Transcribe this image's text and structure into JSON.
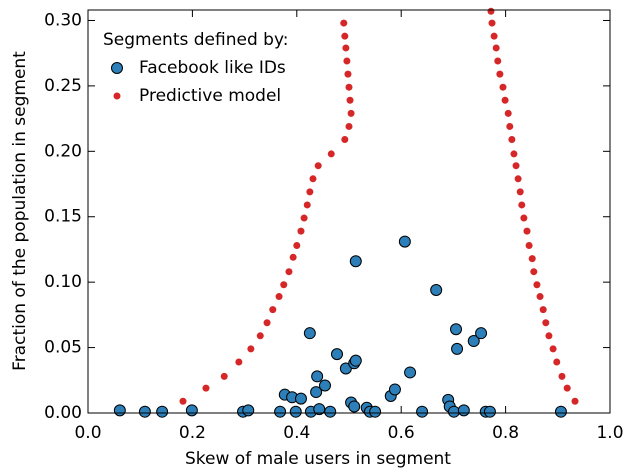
{
  "chart_data": {
    "type": "scatter",
    "xlabel": "Skew of male users in segment",
    "ylabel": "Fraction of the population in segment",
    "legend_title": "Segments defined by:",
    "legend": "upper left",
    "xlim": [
      0,
      1
    ],
    "ylim": [
      0,
      0.308
    ],
    "xticks": [
      {
        "value": 0,
        "label": "0.0"
      },
      {
        "value": 0.2,
        "label": "0.2"
      },
      {
        "value": 0.4,
        "label": "0.4"
      },
      {
        "value": 0.6,
        "label": "0.6"
      },
      {
        "value": 0.8,
        "label": "0.8"
      },
      {
        "value": 1,
        "label": "1.0"
      }
    ],
    "yticks": [
      {
        "value": 0,
        "label": "0.00"
      },
      {
        "value": 0.05,
        "label": "0.05"
      },
      {
        "value": 0.1,
        "label": "0.10"
      },
      {
        "value": 0.15,
        "label": "0.15"
      },
      {
        "value": 0.2,
        "label": "0.20"
      },
      {
        "value": 0.25,
        "label": "0.25"
      },
      {
        "value": 0.3,
        "label": "0.30"
      }
    ],
    "series": [
      {
        "name": "Facebook like IDs",
        "color": "#2c7fb8",
        "x": [
          0.061,
          0.109,
          0.142,
          0.199,
          0.297,
          0.307,
          0.368,
          0.377,
          0.391,
          0.398,
          0.408,
          0.425,
          0.427,
          0.437,
          0.439,
          0.443,
          0.454,
          0.464,
          0.477,
          0.494,
          0.504,
          0.51,
          0.51,
          0.513,
          0.513,
          0.534,
          0.54,
          0.55,
          0.58,
          0.588,
          0.607,
          0.617,
          0.64,
          0.667,
          0.69,
          0.693,
          0.701,
          0.705,
          0.707,
          0.72,
          0.739,
          0.753,
          0.762,
          0.77,
          0.906
        ],
        "values": [
          0.002,
          0.001,
          0.001,
          0.002,
          0.001,
          0.002,
          0.001,
          0.014,
          0.012,
          0.001,
          0.011,
          0.061,
          0.001,
          0.016,
          0.028,
          0.003,
          0.021,
          0.001,
          0.045,
          0.034,
          0.008,
          0.005,
          0.038,
          0.04,
          0.116,
          0.004,
          0.001,
          0.001,
          0.013,
          0.018,
          0.131,
          0.031,
          0.001,
          0.094,
          0.01,
          0.005,
          0.001,
          0.064,
          0.049,
          0.002,
          0.055,
          0.061,
          0.001,
          0.001,
          0.001
        ]
      },
      {
        "name": "Predictive model",
        "color": "#d62728",
        "x": [
          0.182,
          0.226,
          0.261,
          0.289,
          0.312,
          0.33,
          0.343,
          0.354,
          0.366,
          0.375,
          0.385,
          0.393,
          0.4,
          0.408,
          0.414,
          0.42,
          0.425,
          0.431,
          0.441,
          0.466,
          0.492,
          0.5,
          0.504,
          0.502,
          0.5,
          0.498,
          0.496,
          0.494,
          0.492,
          0.49,
          0.772,
          0.774,
          0.778,
          0.782,
          0.785,
          0.789,
          0.795,
          0.799,
          0.805,
          0.808,
          0.812,
          0.816,
          0.82,
          0.824,
          0.828,
          0.831,
          0.835,
          0.841,
          0.845,
          0.851,
          0.854,
          0.86,
          0.866,
          0.872,
          0.877,
          0.883,
          0.891,
          0.898,
          0.908,
          0.918,
          0.933
        ],
        "values": [
          0.009,
          0.019,
          0.028,
          0.039,
          0.049,
          0.059,
          0.069,
          0.079,
          0.089,
          0.098,
          0.108,
          0.119,
          0.128,
          0.139,
          0.149,
          0.159,
          0.169,
          0.179,
          0.189,
          0.198,
          0.209,
          0.219,
          0.229,
          0.239,
          0.249,
          0.259,
          0.269,
          0.279,
          0.288,
          0.298,
          0.307,
          0.298,
          0.288,
          0.279,
          0.269,
          0.259,
          0.249,
          0.239,
          0.229,
          0.219,
          0.209,
          0.198,
          0.189,
          0.179,
          0.169,
          0.159,
          0.149,
          0.139,
          0.128,
          0.118,
          0.108,
          0.098,
          0.089,
          0.079,
          0.069,
          0.059,
          0.049,
          0.039,
          0.028,
          0.019,
          0.009
        ]
      }
    ]
  }
}
